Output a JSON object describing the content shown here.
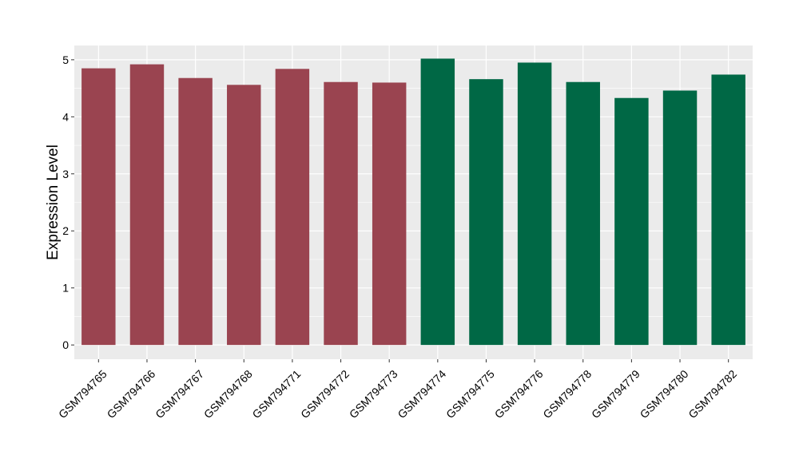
{
  "chart_data": {
    "type": "bar",
    "title": "",
    "xlabel": "",
    "ylabel": "Expression Level",
    "ylim": [
      -0.25,
      5.25
    ],
    "yticks": [
      0,
      1,
      2,
      3,
      4,
      5
    ],
    "grid": true,
    "categories": [
      "GSM794765",
      "GSM794766",
      "GSM794767",
      "GSM794768",
      "GSM794771",
      "GSM794772",
      "GSM794773",
      "GSM794774",
      "GSM794775",
      "GSM794776",
      "GSM794778",
      "GSM794779",
      "GSM794780",
      "GSM794782"
    ],
    "values": [
      4.85,
      4.92,
      4.68,
      4.56,
      4.84,
      4.61,
      4.6,
      5.02,
      4.66,
      4.95,
      4.61,
      4.33,
      4.46,
      4.74
    ],
    "groups": [
      "a",
      "a",
      "a",
      "a",
      "a",
      "a",
      "a",
      "b",
      "b",
      "b",
      "b",
      "b",
      "b",
      "b"
    ],
    "group_colors": {
      "a": "#9a4450",
      "b": "#006845"
    },
    "colors": {
      "panel_background": "#ebebeb",
      "grid": "#ffffff",
      "text": "#000000"
    }
  }
}
